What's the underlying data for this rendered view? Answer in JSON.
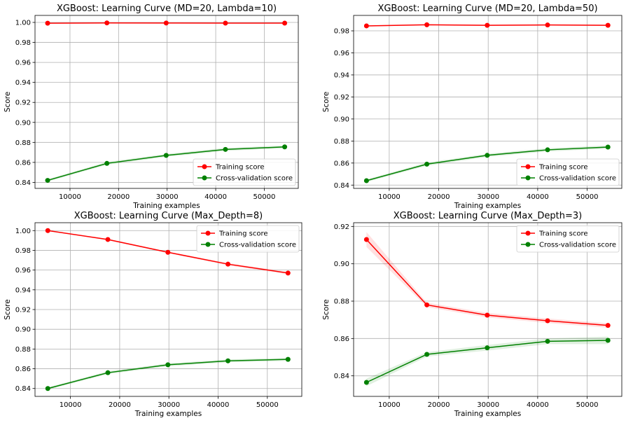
{
  "chart_data": [
    {
      "type": "line",
      "title": "XGBoost: Learning Curve (MD=20, Lambda=10)",
      "xlabel": "Training examples",
      "ylabel": "Score",
      "xlim": [
        2800,
        57000
      ],
      "ylim": [
        0.834,
        1.007
      ],
      "xticks": [
        10000,
        20000,
        30000,
        40000,
        50000
      ],
      "yticks": [
        0.84,
        0.86,
        0.88,
        0.9,
        0.92,
        0.94,
        0.96,
        0.98,
        1.0
      ],
      "grid": true,
      "legend_position": "lower-right",
      "x": [
        5400,
        17600,
        29800,
        42000,
        54200
      ],
      "series": [
        {
          "name": "Training score",
          "color": "#ff0000",
          "values": [
            0.9992,
            0.9995,
            0.9994,
            0.9993,
            0.9993
          ],
          "band": [
            0.0004,
            0.0003,
            0.0003,
            0.0003,
            0.0003
          ]
        },
        {
          "name": "Cross-validation score",
          "color": "#008000",
          "values": [
            0.842,
            0.859,
            0.867,
            0.873,
            0.8755
          ],
          "band": [
            0.0012,
            0.0015,
            0.0015,
            0.0015,
            0.0015
          ]
        }
      ]
    },
    {
      "type": "line",
      "title": "XGBoost: Learning Curve (MD=20, Lambda=50)",
      "xlabel": "Training examples",
      "ylabel": "Score",
      "xlim": [
        2800,
        57000
      ],
      "ylim": [
        0.837,
        0.994
      ],
      "xticks": [
        10000,
        20000,
        30000,
        40000,
        50000
      ],
      "yticks": [
        0.84,
        0.86,
        0.88,
        0.9,
        0.92,
        0.94,
        0.96,
        0.98
      ],
      "grid": true,
      "legend_position": "lower-right",
      "x": [
        5400,
        17600,
        29800,
        42000,
        54200
      ],
      "series": [
        {
          "name": "Training score",
          "color": "#ff0000",
          "values": [
            0.9845,
            0.9855,
            0.985,
            0.9853,
            0.985
          ],
          "band": [
            0.0005,
            0.0005,
            0.0005,
            0.0005,
            0.0005
          ]
        },
        {
          "name": "Cross-validation score",
          "color": "#008000",
          "values": [
            0.844,
            0.859,
            0.867,
            0.872,
            0.8745
          ],
          "band": [
            0.0012,
            0.0015,
            0.0015,
            0.0015,
            0.0015
          ]
        }
      ]
    },
    {
      "type": "line",
      "title": "XGBoost: Learning Curve (Max_Depth=8)",
      "xlabel": "Training examples",
      "ylabel": "Score",
      "xlim": [
        2800,
        57000
      ],
      "ylim": [
        0.832,
        1.008
      ],
      "xticks": [
        10000,
        20000,
        30000,
        40000,
        50000
      ],
      "yticks": [
        0.84,
        0.86,
        0.88,
        0.9,
        0.92,
        0.94,
        0.96,
        0.98,
        1.0
      ],
      "grid": true,
      "legend_position": "upper-right",
      "x": [
        5400,
        17600,
        29800,
        42000,
        54200
      ],
      "series": [
        {
          "name": "Training score",
          "color": "#ff0000",
          "values": [
            1.0,
            0.991,
            0.978,
            0.966,
            0.957
          ],
          "band": [
            0.0003,
            0.0008,
            0.0008,
            0.0012,
            0.0012
          ]
        },
        {
          "name": "Cross-validation score",
          "color": "#008000",
          "values": [
            0.84,
            0.856,
            0.864,
            0.868,
            0.8695
          ],
          "band": [
            0.0012,
            0.0015,
            0.0015,
            0.0015,
            0.0015
          ]
        }
      ]
    },
    {
      "type": "line",
      "title": "XGBoost: Learning Curve (Max_Depth=3)",
      "xlabel": "Training examples",
      "ylabel": "Score",
      "xlim": [
        2800,
        57000
      ],
      "ylim": [
        0.829,
        0.922
      ],
      "xticks": [
        10000,
        20000,
        30000,
        40000,
        50000
      ],
      "yticks": [
        0.84,
        0.86,
        0.88,
        0.9,
        0.92
      ],
      "grid": true,
      "legend_position": "upper-right",
      "x": [
        5400,
        17600,
        29800,
        42000,
        54200
      ],
      "series": [
        {
          "name": "Training score",
          "color": "#ff0000",
          "values": [
            0.913,
            0.878,
            0.8725,
            0.8695,
            0.867
          ],
          "band": [
            0.004,
            0.0012,
            0.0012,
            0.0012,
            0.0012
          ]
        },
        {
          "name": "Cross-validation score",
          "color": "#008000",
          "values": [
            0.8365,
            0.8515,
            0.855,
            0.8585,
            0.859
          ],
          "band": [
            0.002,
            0.0012,
            0.0015,
            0.0015,
            0.002
          ]
        }
      ]
    }
  ]
}
